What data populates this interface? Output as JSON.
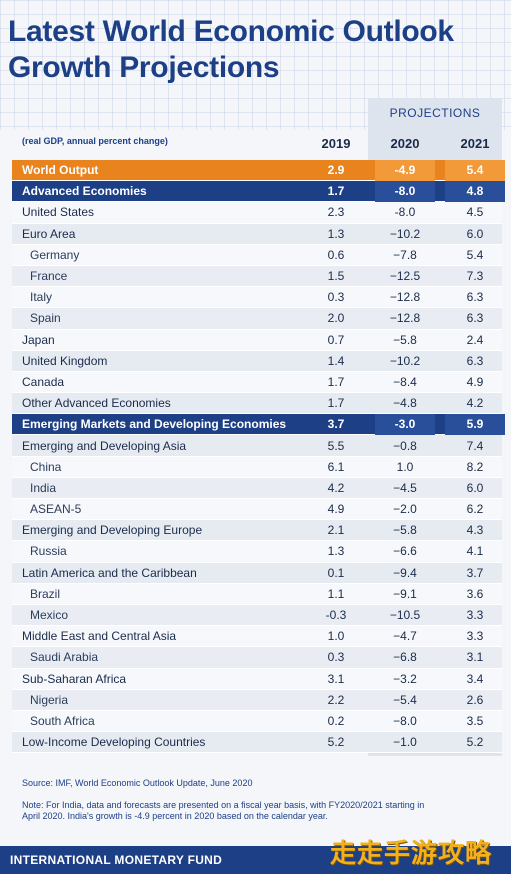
{
  "title_line1": "Latest World Economic Outlook",
  "title_line2": "Growth Projections",
  "projections_label": "PROJECTIONS",
  "unit_note": "(real GDP, annual percent change)",
  "chart_data": {
    "type": "table",
    "columns": [
      "2019",
      "2020",
      "2021"
    ],
    "rows": [
      {
        "name": "World Output",
        "style": "world",
        "values": [
          "2.9",
          "-4.9",
          "5.4"
        ]
      },
      {
        "name": "Advanced Economies",
        "style": "advanced",
        "values": [
          "1.7",
          "-8.0",
          "4.8"
        ]
      },
      {
        "name": "United States",
        "style": "head",
        "values": [
          "2.3",
          "-8.0",
          "4.5"
        ]
      },
      {
        "name": "Euro Area",
        "style": "head",
        "values": [
          "1.3",
          "−10.2",
          "6.0"
        ]
      },
      {
        "name": "Germany",
        "style": "sub",
        "values": [
          "0.6",
          "−7.8",
          "5.4"
        ]
      },
      {
        "name": "France",
        "style": "sub",
        "values": [
          "1.5",
          "−12.5",
          "7.3"
        ]
      },
      {
        "name": "Italy",
        "style": "sub",
        "values": [
          "0.3",
          "−12.8",
          "6.3"
        ]
      },
      {
        "name": "Spain",
        "style": "sub",
        "values": [
          "2.0",
          "−12.8",
          "6.3"
        ]
      },
      {
        "name": "Japan",
        "style": "head",
        "values": [
          "0.7",
          "−5.8",
          "2.4"
        ]
      },
      {
        "name": "United Kingdom",
        "style": "head",
        "values": [
          "1.4",
          "−10.2",
          "6.3"
        ]
      },
      {
        "name": "Canada",
        "style": "head",
        "values": [
          "1.7",
          "−8.4",
          "4.9"
        ]
      },
      {
        "name": "Other Advanced Economies",
        "style": "head",
        "values": [
          "1.7",
          "−4.8",
          "4.2"
        ]
      },
      {
        "name": "Emerging Markets and Developing Economies",
        "style": "emerging",
        "values": [
          "3.7",
          "-3.0",
          "5.9"
        ]
      },
      {
        "name": "Emerging and Developing Asia",
        "style": "head",
        "values": [
          "5.5",
          "−0.8",
          "7.4"
        ]
      },
      {
        "name": "China",
        "style": "sub",
        "values": [
          "6.1",
          "1.0",
          "8.2"
        ]
      },
      {
        "name": "India",
        "style": "sub",
        "values": [
          "4.2",
          "−4.5",
          "6.0"
        ]
      },
      {
        "name": "ASEAN-5",
        "style": "sub",
        "values": [
          "4.9",
          "−2.0",
          "6.2"
        ]
      },
      {
        "name": "Emerging and Developing Europe",
        "style": "head",
        "values": [
          "2.1",
          "−5.8",
          "4.3"
        ]
      },
      {
        "name": "Russia",
        "style": "sub",
        "values": [
          "1.3",
          "−6.6",
          "4.1"
        ]
      },
      {
        "name": "Latin America and the Caribbean",
        "style": "head",
        "values": [
          "0.1",
          "−9.4",
          "3.7"
        ]
      },
      {
        "name": "Brazil",
        "style": "sub",
        "values": [
          "1.1",
          "−9.1",
          "3.6"
        ]
      },
      {
        "name": "Mexico",
        "style": "sub",
        "values": [
          "-0.3",
          "−10.5",
          "3.3"
        ]
      },
      {
        "name": "Middle East and Central Asia",
        "style": "head",
        "values": [
          "1.0",
          "−4.7",
          "3.3"
        ]
      },
      {
        "name": "Saudi Arabia",
        "style": "sub",
        "values": [
          "0.3",
          "−6.8",
          "3.1"
        ]
      },
      {
        "name": "Sub-Saharan Africa",
        "style": "head",
        "values": [
          "3.1",
          "−3.2",
          "3.4"
        ]
      },
      {
        "name": "Nigeria",
        "style": "sub",
        "values": [
          "2.2",
          "−5.4",
          "2.6"
        ]
      },
      {
        "name": "South Africa",
        "style": "sub",
        "values": [
          "0.2",
          "−8.0",
          "3.5"
        ]
      },
      {
        "name": "Low-Income Developing Countries",
        "style": "head",
        "values": [
          "5.2",
          "−1.0",
          "5.2"
        ]
      }
    ]
  },
  "source": "Source: IMF, World Economic Outlook Update, June 2020",
  "note": "Note: For India, data and forecasts are presented on a fiscal year basis, with FY2020/2021 starting in April 2020. India's growth is -4.9 percent in 2020 based on the calendar year.",
  "footer": "INTERNATIONAL MONETARY FUND",
  "watermark": "走走手游攻略"
}
